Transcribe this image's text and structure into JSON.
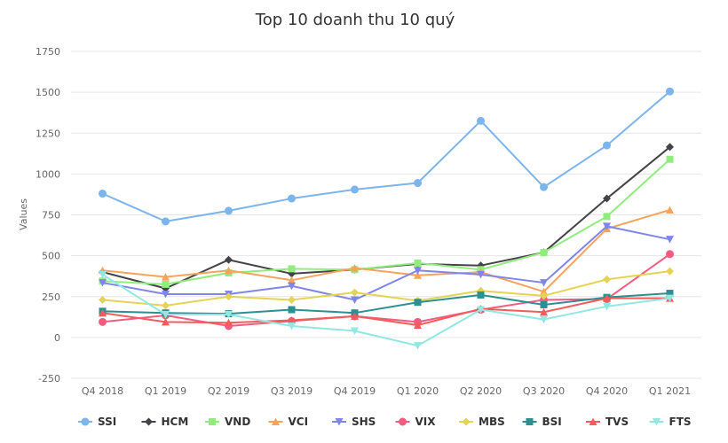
{
  "chart_data": {
    "type": "line",
    "title": "Top 10 doanh thu 10 quý",
    "xlabel": "",
    "ylabel": "Values",
    "ylim": [
      -250,
      1750
    ],
    "yticks": [
      -250,
      0,
      250,
      500,
      750,
      1000,
      1250,
      1500,
      1750
    ],
    "ytick_labels": [
      "-250",
      "0",
      "250",
      "500",
      "750",
      "1000",
      "1250",
      "1500",
      "1750"
    ],
    "grid": true,
    "legend_position": "bottom",
    "categories": [
      "Q4 2018",
      "Q1 2019",
      "Q2 2019",
      "Q3 2019",
      "Q4 2019",
      "Q1 2020",
      "Q2 2020",
      "Q3 2020",
      "Q4 2020",
      "Q1 2021"
    ],
    "series": [
      {
        "name": "SSI",
        "color": "#7cb5ec",
        "marker": "circle",
        "values": [
          880,
          710,
          775,
          850,
          905,
          945,
          1325,
          920,
          1175,
          1505
        ]
      },
      {
        "name": "HCM",
        "color": "#434348",
        "marker": "diamond",
        "values": [
          400,
          300,
          475,
          390,
          415,
          450,
          440,
          520,
          850,
          1165
        ]
      },
      {
        "name": "VND",
        "color": "#90ed7d",
        "marker": "square",
        "values": [
          345,
          325,
          395,
          420,
          415,
          455,
          415,
          520,
          740,
          1090
        ]
      },
      {
        "name": "VCI",
        "color": "#f7a35c",
        "marker": "triangle",
        "values": [
          410,
          370,
          410,
          350,
          425,
          380,
          400,
          280,
          665,
          780
        ]
      },
      {
        "name": "SHS",
        "color": "#8085e9",
        "marker": "triangle-down",
        "values": [
          335,
          265,
          265,
          315,
          230,
          410,
          385,
          335,
          680,
          600
        ]
      },
      {
        "name": "VIX",
        "color": "#f15c80",
        "marker": "circle",
        "values": [
          95,
          135,
          70,
          100,
          130,
          95,
          170,
          230,
          235,
          510
        ]
      },
      {
        "name": "MBS",
        "color": "#e4d354",
        "marker": "diamond",
        "values": [
          230,
          195,
          250,
          230,
          275,
          225,
          285,
          255,
          355,
          405
        ]
      },
      {
        "name": "BSI",
        "color": "#2b908f",
        "marker": "square",
        "values": [
          160,
          150,
          145,
          170,
          150,
          215,
          260,
          200,
          245,
          270
        ]
      },
      {
        "name": "TVS",
        "color": "#f45b5b",
        "marker": "triangle",
        "values": [
          150,
          95,
          90,
          105,
          130,
          75,
          175,
          155,
          240,
          240
        ]
      },
      {
        "name": "FTS",
        "color": "#91e8e1",
        "marker": "triangle-down",
        "values": [
          385,
          140,
          140,
          70,
          40,
          -50,
          170,
          110,
          190,
          240
        ]
      }
    ]
  }
}
